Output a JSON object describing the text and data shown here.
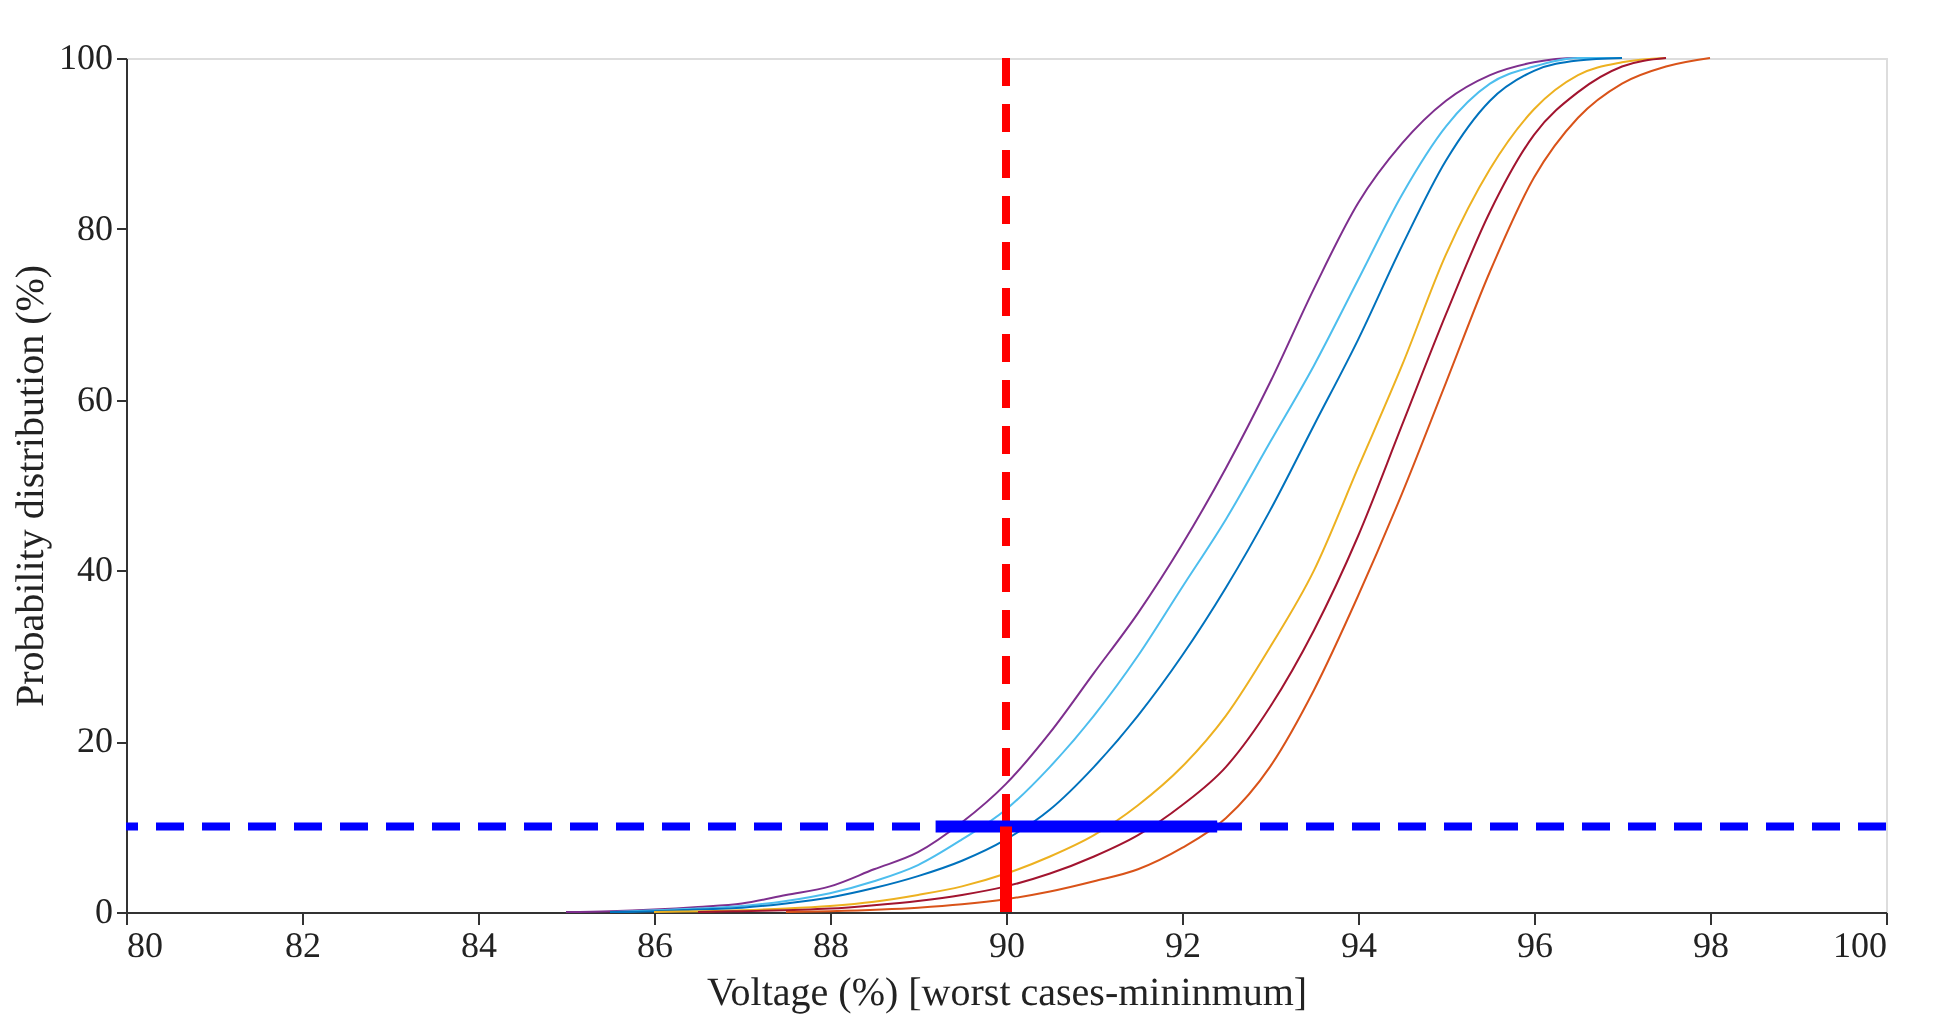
{
  "chart_data": {
    "type": "line",
    "xlabel": "Voltage (%) [worst cases-mininmum]",
    "ylabel": "Probability distribution (%)",
    "xlim": [
      80,
      100
    ],
    "xticks": [
      80,
      82,
      84,
      86,
      88,
      90,
      92,
      94,
      96,
      98,
      100
    ],
    "ylim": [
      0,
      100
    ],
    "yticks": [
      0,
      20,
      40,
      60,
      80,
      100
    ],
    "marker": "none",
    "line_style": "solid",
    "series": [
      {
        "color": "#7e2f8e",
        "x": [
          85,
          85.5,
          86,
          86.5,
          87,
          87.5,
          88,
          88.5,
          89,
          89.5,
          90,
          90.5,
          91,
          91.5,
          92,
          92.5,
          93,
          93.5,
          94,
          94.5,
          95,
          95.5,
          96,
          96.5,
          97
        ],
        "values": [
          0,
          0.1,
          0.3,
          0.6,
          1,
          2,
          3,
          5,
          7,
          10.5,
          15,
          21,
          28,
          35,
          43,
          52,
          62,
          73,
          83,
          90,
          95,
          98,
          99.5,
          100,
          100
        ]
      },
      {
        "color": "#4dbeee",
        "x": [
          85.5,
          86,
          86.5,
          87,
          87.5,
          88,
          88.5,
          89,
          89.5,
          90,
          90.5,
          91,
          91.5,
          92,
          92.5,
          93,
          93.5,
          94,
          94.5,
          95,
          95.5,
          96,
          96.5,
          97
        ],
        "values": [
          0,
          0.2,
          0.4,
          0.7,
          1.3,
          2.2,
          3.6,
          5.5,
          8.5,
          12,
          17,
          23,
          30,
          38,
          46,
          55,
          64,
          74,
          84,
          92,
          97,
          99,
          100,
          100
        ]
      },
      {
        "color": "#0072bd",
        "x": [
          85.5,
          86,
          86.5,
          87,
          87.5,
          88,
          88.5,
          89,
          89.5,
          90,
          90.5,
          91,
          91.5,
          92,
          92.5,
          93,
          93.5,
          94,
          94.5,
          95,
          95.5,
          96,
          96.5,
          97
        ],
        "values": [
          0,
          0.1,
          0.3,
          0.5,
          1,
          1.7,
          2.8,
          4.2,
          6,
          8.5,
          12,
          17,
          23,
          30,
          38,
          47,
          57,
          67,
          78,
          88,
          95,
          98.5,
          99.7,
          100
        ]
      },
      {
        "color": "#edb120",
        "x": [
          86,
          87,
          87.5,
          88,
          88.5,
          89,
          89.5,
          90,
          90.5,
          91,
          91.5,
          92,
          92.5,
          93,
          93.5,
          94,
          94.5,
          95,
          95.5,
          96,
          96.5,
          97,
          97.5
        ],
        "values": [
          0,
          0.2,
          0.4,
          0.7,
          1.2,
          2,
          3,
          4.5,
          6.5,
          9,
          12.5,
          17,
          23,
          31,
          40,
          52,
          64,
          77,
          87,
          94,
          98,
          99.5,
          100
        ]
      },
      {
        "color": "#a2142f",
        "x": [
          86.5,
          87,
          88,
          88.5,
          89,
          89.5,
          90,
          90.5,
          91,
          91.5,
          92,
          92.5,
          93,
          93.5,
          94,
          94.5,
          95,
          95.5,
          96,
          96.5,
          97,
          97.5
        ],
        "values": [
          0,
          0.1,
          0.4,
          0.8,
          1.3,
          2,
          3,
          4.5,
          6.5,
          9,
          12.5,
          17,
          24,
          33,
          44,
          57,
          70,
          82,
          91,
          96,
          99,
          100
        ]
      },
      {
        "color": "#d95319",
        "x": [
          87.5,
          88,
          89,
          89.5,
          90,
          90.5,
          91,
          91.5,
          92,
          92.5,
          93,
          93.5,
          94,
          94.5,
          95,
          95.5,
          96,
          96.5,
          97,
          97.5,
          98
        ],
        "values": [
          0,
          0.1,
          0.5,
          0.9,
          1.5,
          2.4,
          3.6,
          5,
          7.5,
          11,
          17,
          26,
          37,
          49,
          62,
          75,
          86,
          93,
          97,
          99,
          100
        ]
      },
      {
        "color": "#0000ff",
        "x": [
          89.2,
          92.4
        ],
        "values": [
          10,
          10
        ]
      },
      {
        "color": "#ff0000",
        "x": [
          90,
          90
        ],
        "values": [
          0,
          10
        ]
      }
    ],
    "ref_lines": [
      {
        "axis": "x",
        "value": 90,
        "color": "#ff0000",
        "line_style": "dashed"
      },
      {
        "axis": "y",
        "value": 10,
        "color": "#0000ff",
        "line_style": "dashed"
      }
    ]
  }
}
